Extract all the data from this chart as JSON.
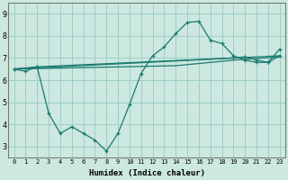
{
  "title": "",
  "xlabel": "Humidex (Indice chaleur)",
  "ylabel": "",
  "bg_color": "#cce8e0",
  "grid_color": "#9fcfc4",
  "line_color": "#1a7a6e",
  "x_ticks": [
    0,
    1,
    2,
    3,
    4,
    5,
    6,
    7,
    8,
    9,
    10,
    11,
    12,
    13,
    14,
    15,
    16,
    17,
    18,
    19,
    20,
    21,
    22,
    23
  ],
  "y_ticks": [
    3,
    4,
    5,
    6,
    7,
    8,
    9
  ],
  "ylim": [
    2.5,
    9.5
  ],
  "xlim": [
    -0.5,
    23.5
  ],
  "series1_x": [
    0,
    1,
    2,
    3,
    4,
    5,
    6,
    7,
    8,
    9,
    10,
    11,
    12,
    13,
    14,
    15,
    16,
    17,
    18,
    19,
    20,
    21,
    22,
    23
  ],
  "series1_y": [
    6.5,
    6.4,
    6.6,
    4.5,
    3.6,
    3.9,
    3.6,
    3.3,
    2.8,
    3.6,
    4.9,
    6.3,
    7.1,
    7.5,
    8.1,
    8.6,
    8.65,
    7.8,
    7.65,
    7.1,
    6.9,
    6.8,
    6.8,
    7.4
  ],
  "series2_x": [
    0,
    2,
    19,
    20,
    21,
    22,
    23
  ],
  "series2_y": [
    6.5,
    6.6,
    7.0,
    7.05,
    6.9,
    6.8,
    7.1
  ],
  "series3_x": [
    0,
    14,
    19,
    23
  ],
  "series3_y": [
    6.5,
    6.65,
    6.9,
    7.05
  ],
  "series4_x": [
    0,
    23
  ],
  "series4_y": [
    6.5,
    7.1
  ]
}
